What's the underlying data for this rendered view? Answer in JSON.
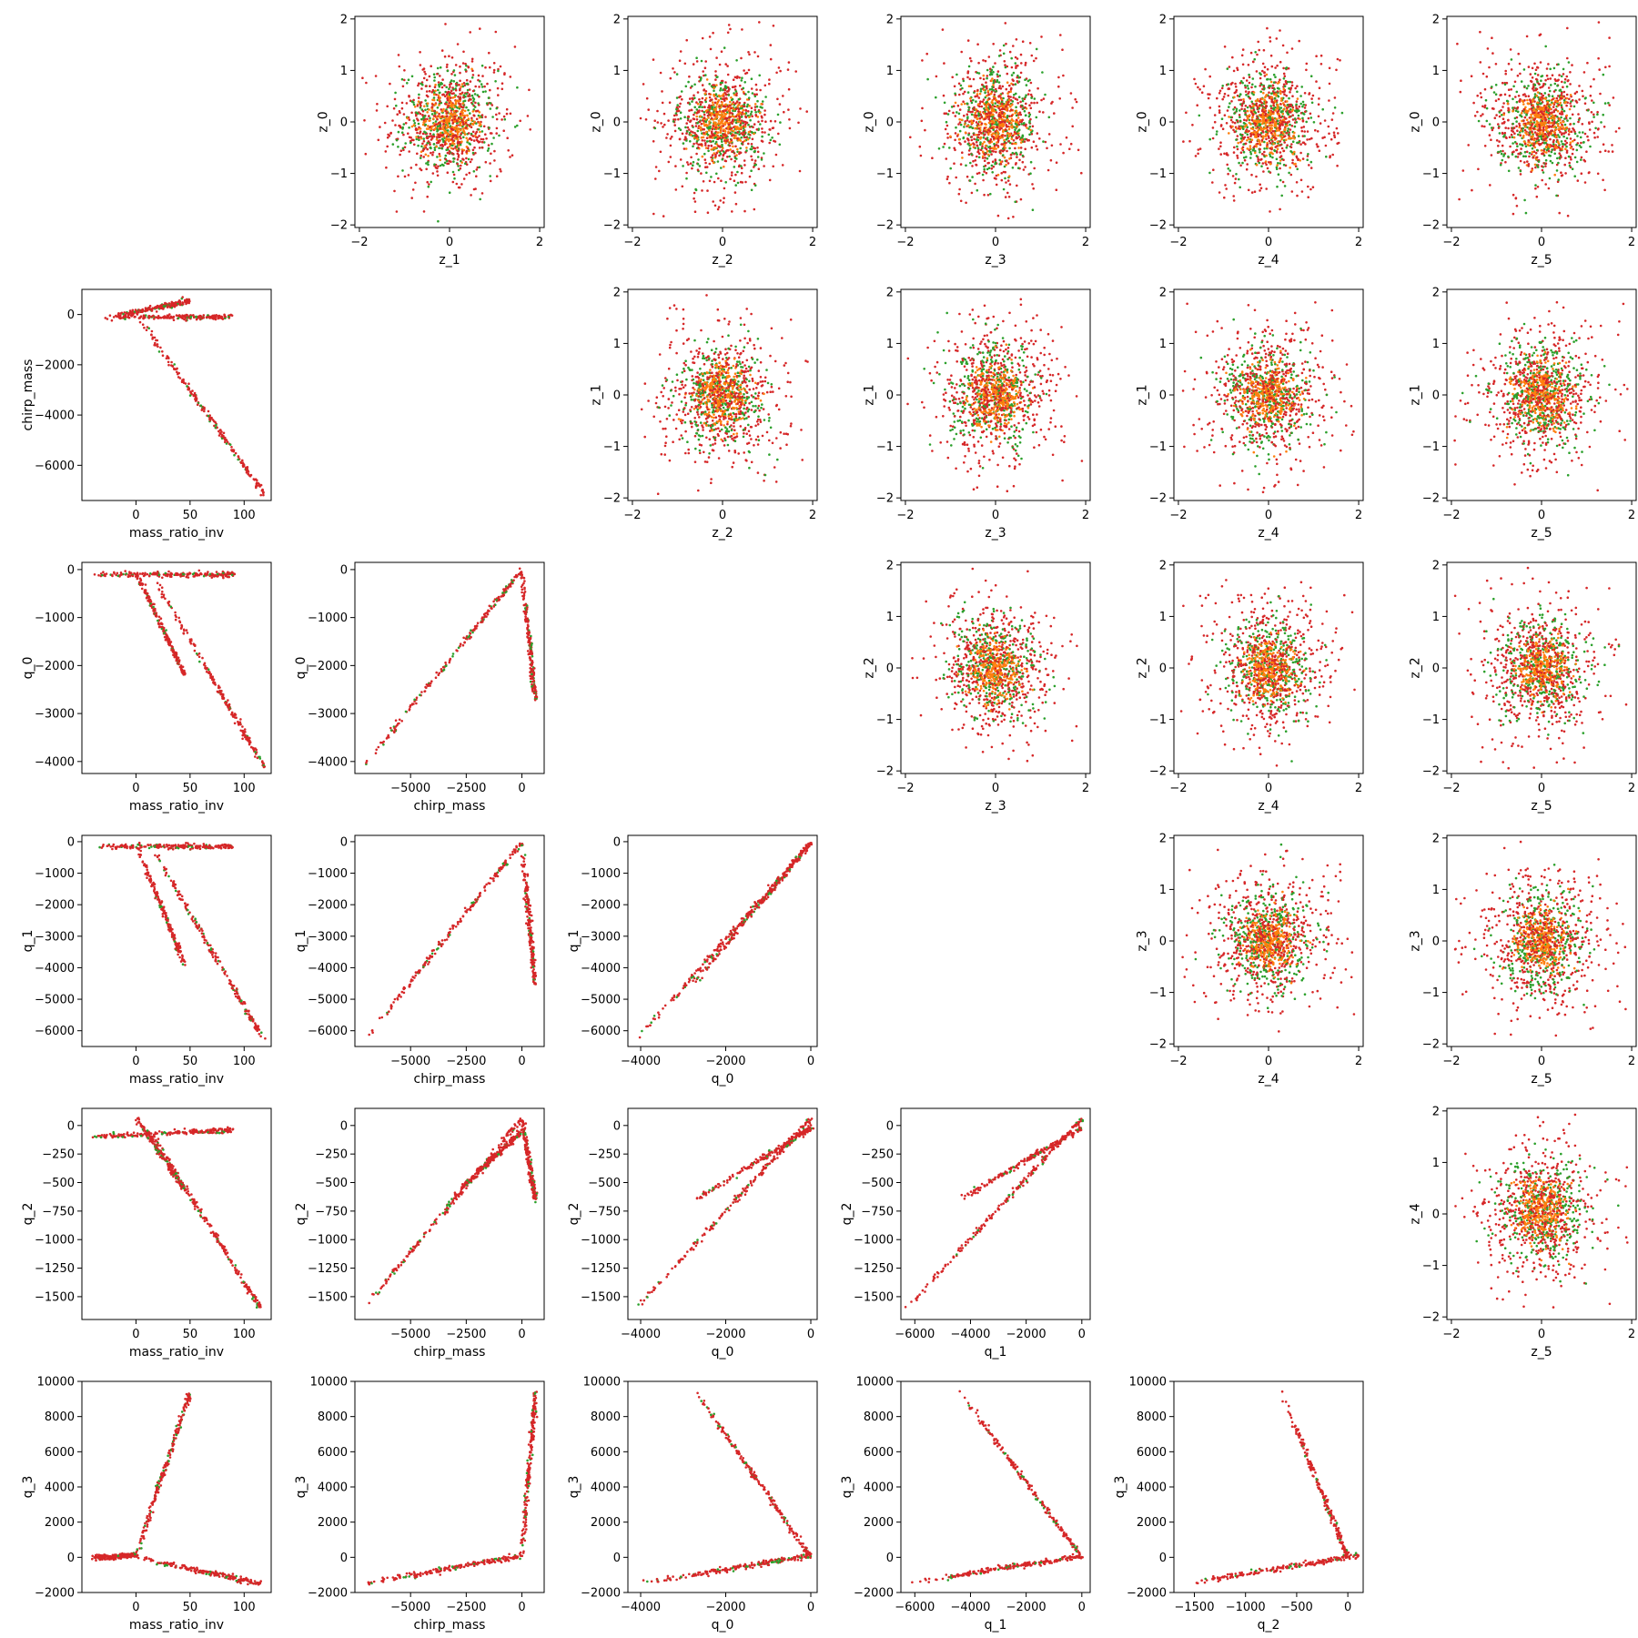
{
  "colors": {
    "red": "#d62728",
    "green": "#2ca02c",
    "orange": "#ff7f0e",
    "frame": "#000000"
  },
  "chart_data": [
    {
      "type": "scatter",
      "row": 0,
      "col": 1,
      "xlabel": "z_1",
      "ylabel": "z_0",
      "kind": "gauss",
      "xlim": [
        -2.1,
        2.1
      ],
      "ylim": [
        -2.05,
        2.05
      ],
      "xticks": [
        -2,
        0,
        2
      ],
      "yticks": [
        -2,
        -1,
        0,
        1,
        2
      ]
    },
    {
      "type": "scatter",
      "row": 0,
      "col": 2,
      "xlabel": "z_2",
      "ylabel": "z_0",
      "kind": "gauss",
      "xlim": [
        -2.1,
        2.1
      ],
      "ylim": [
        -2.05,
        2.05
      ],
      "xticks": [
        -2,
        0,
        2
      ],
      "yticks": [
        -2,
        -1,
        0,
        1,
        2
      ]
    },
    {
      "type": "scatter",
      "row": 0,
      "col": 3,
      "xlabel": "z_3",
      "ylabel": "z_0",
      "kind": "gauss",
      "xlim": [
        -2.1,
        2.1
      ],
      "ylim": [
        -2.05,
        2.05
      ],
      "xticks": [
        -2,
        0,
        2
      ],
      "yticks": [
        -2,
        -1,
        0,
        1,
        2
      ]
    },
    {
      "type": "scatter",
      "row": 0,
      "col": 4,
      "xlabel": "z_4",
      "ylabel": "z_0",
      "kind": "gauss",
      "xlim": [
        -2.1,
        2.1
      ],
      "ylim": [
        -2.05,
        2.05
      ],
      "xticks": [
        -2,
        0,
        2
      ],
      "yticks": [
        -2,
        -1,
        0,
        1,
        2
      ]
    },
    {
      "type": "scatter",
      "row": 0,
      "col": 5,
      "xlabel": "z_5",
      "ylabel": "z_0",
      "kind": "gauss",
      "xlim": [
        -2.1,
        2.1
      ],
      "ylim": [
        -2.05,
        2.05
      ],
      "xticks": [
        -2,
        0,
        2
      ],
      "yticks": [
        -2,
        -1,
        0,
        1,
        2
      ]
    },
    {
      "type": "scatter",
      "row": 1,
      "col": 0,
      "xlabel": "mass_ratio_inv",
      "ylabel": "chirp_mass",
      "kind": "lines",
      "xlim": [
        -50,
        125
      ],
      "ylim": [
        -7400,
        1000
      ],
      "xticks": [
        0,
        50,
        100
      ],
      "yticks": [
        -6000,
        -4000,
        -2000,
        0
      ],
      "segments": [
        [
          [
            -30,
            -150
          ],
          [
            50,
            550
          ]
        ],
        [
          [
            -15,
            -100
          ],
          [
            90,
            -100
          ]
        ],
        [
          [
            5,
            -300
          ],
          [
            118,
            -7100
          ]
        ]
      ]
    },
    {
      "type": "scatter",
      "row": 1,
      "col": 2,
      "xlabel": "z_2",
      "ylabel": "z_1",
      "kind": "gauss",
      "xlim": [
        -2.1,
        2.1
      ],
      "ylim": [
        -2.05,
        2.05
      ],
      "xticks": [
        -2,
        0,
        2
      ],
      "yticks": [
        -2,
        -1,
        0,
        1,
        2
      ]
    },
    {
      "type": "scatter",
      "row": 1,
      "col": 3,
      "xlabel": "z_3",
      "ylabel": "z_1",
      "kind": "gauss",
      "xlim": [
        -2.1,
        2.1
      ],
      "ylim": [
        -2.05,
        2.05
      ],
      "xticks": [
        -2,
        0,
        2
      ],
      "yticks": [
        -2,
        -1,
        0,
        1,
        2
      ]
    },
    {
      "type": "scatter",
      "row": 1,
      "col": 4,
      "xlabel": "z_4",
      "ylabel": "z_1",
      "kind": "gauss",
      "xlim": [
        -2.1,
        2.1
      ],
      "ylim": [
        -2.05,
        2.05
      ],
      "xticks": [
        -2,
        0,
        2
      ],
      "yticks": [
        -2,
        -1,
        0,
        1,
        2
      ]
    },
    {
      "type": "scatter",
      "row": 1,
      "col": 5,
      "xlabel": "z_5",
      "ylabel": "z_1",
      "kind": "gauss",
      "xlim": [
        -2.1,
        2.1
      ],
      "ylim": [
        -2.05,
        2.05
      ],
      "xticks": [
        -2,
        0,
        2
      ],
      "yticks": [
        -2,
        -1,
        0,
        1,
        2
      ]
    },
    {
      "type": "scatter",
      "row": 2,
      "col": 0,
      "xlabel": "mass_ratio_inv",
      "ylabel": "q_0",
      "kind": "lines",
      "xlim": [
        -50,
        125
      ],
      "ylim": [
        -4250,
        150
      ],
      "xticks": [
        0,
        50,
        100
      ],
      "yticks": [
        -4000,
        -3000,
        -2000,
        -1000,
        0
      ],
      "segments": [
        [
          [
            -40,
            -100
          ],
          [
            90,
            -100
          ]
        ],
        [
          [
            0,
            -50
          ],
          [
            45,
            -2200
          ]
        ],
        [
          [
            15,
            -100
          ],
          [
            118,
            -4100
          ]
        ]
      ]
    },
    {
      "type": "scatter",
      "row": 2,
      "col": 1,
      "xlabel": "chirp_mass",
      "ylabel": "q_0",
      "kind": "lines",
      "xlim": [
        -7500,
        1000
      ],
      "ylim": [
        -4250,
        150
      ],
      "xticks": [
        -5000,
        -2500,
        0
      ],
      "yticks": [
        -4000,
        -3000,
        -2000,
        -1000,
        0
      ],
      "segments": [
        [
          [
            -7100,
            -4100
          ],
          [
            0,
            -10
          ]
        ],
        [
          [
            0,
            -10
          ],
          [
            600,
            -2700
          ]
        ]
      ]
    },
    {
      "type": "scatter",
      "row": 2,
      "col": 3,
      "xlabel": "z_3",
      "ylabel": "z_2",
      "kind": "gauss",
      "xlim": [
        -2.1,
        2.1
      ],
      "ylim": [
        -2.05,
        2.05
      ],
      "xticks": [
        -2,
        0,
        2
      ],
      "yticks": [
        -2,
        -1,
        0,
        1,
        2
      ]
    },
    {
      "type": "scatter",
      "row": 2,
      "col": 4,
      "xlabel": "z_4",
      "ylabel": "z_2",
      "kind": "gauss",
      "xlim": [
        -2.1,
        2.1
      ],
      "ylim": [
        -2.05,
        2.05
      ],
      "xticks": [
        -2,
        0,
        2
      ],
      "yticks": [
        -2,
        -1,
        0,
        1,
        2
      ]
    },
    {
      "type": "scatter",
      "row": 2,
      "col": 5,
      "xlabel": "z_5",
      "ylabel": "z_2",
      "kind": "gauss",
      "xlim": [
        -2.1,
        2.1
      ],
      "ylim": [
        -2.05,
        2.05
      ],
      "xticks": [
        -2,
        0,
        2
      ],
      "yticks": [
        -2,
        -1,
        0,
        1,
        2
      ]
    },
    {
      "type": "scatter",
      "row": 3,
      "col": 0,
      "xlabel": "mass_ratio_inv",
      "ylabel": "q_1",
      "kind": "lines",
      "xlim": [
        -50,
        125
      ],
      "ylim": [
        -6500,
        200
      ],
      "xticks": [
        0,
        50,
        100
      ],
      "yticks": [
        -6000,
        -5000,
        -4000,
        -3000,
        -2000,
        -1000,
        0
      ],
      "segments": [
        [
          [
            -40,
            -150
          ],
          [
            90,
            -150
          ]
        ],
        [
          [
            0,
            -50
          ],
          [
            45,
            -3900
          ]
        ],
        [
          [
            15,
            -200
          ],
          [
            118,
            -6300
          ]
        ]
      ]
    },
    {
      "type": "scatter",
      "row": 3,
      "col": 1,
      "xlabel": "chirp_mass",
      "ylabel": "q_1",
      "kind": "lines",
      "xlim": [
        -7500,
        1000
      ],
      "ylim": [
        -6500,
        200
      ],
      "xticks": [
        -5000,
        -2500,
        0
      ],
      "yticks": [
        -6000,
        -5000,
        -4000,
        -3000,
        -2000,
        -1000,
        0
      ],
      "segments": [
        [
          [
            -7100,
            -6300
          ],
          [
            0,
            -30
          ]
        ],
        [
          [
            0,
            -30
          ],
          [
            600,
            -4500
          ]
        ]
      ]
    },
    {
      "type": "scatter",
      "row": 3,
      "col": 2,
      "xlabel": "q_0",
      "ylabel": "q_1",
      "kind": "lines",
      "xlim": [
        -4300,
        150
      ],
      "ylim": [
        -6500,
        200
      ],
      "xticks": [
        -4000,
        -2000,
        0
      ],
      "yticks": [
        -6000,
        -5000,
        -4000,
        -3000,
        -2000,
        -1000,
        0
      ],
      "segments": [
        [
          [
            -4100,
            -6300
          ],
          [
            0,
            -30
          ]
        ],
        [
          [
            -2700,
            -4400
          ],
          [
            0,
            -30
          ]
        ]
      ]
    },
    {
      "type": "scatter",
      "row": 3,
      "col": 4,
      "xlabel": "z_4",
      "ylabel": "z_3",
      "kind": "gauss",
      "xlim": [
        -2.1,
        2.1
      ],
      "ylim": [
        -2.05,
        2.05
      ],
      "xticks": [
        -2,
        0,
        2
      ],
      "yticks": [
        -2,
        -1,
        0,
        1,
        2
      ]
    },
    {
      "type": "scatter",
      "row": 3,
      "col": 5,
      "xlabel": "z_5",
      "ylabel": "z_3",
      "kind": "gauss",
      "xlim": [
        -2.1,
        2.1
      ],
      "ylim": [
        -2.05,
        2.05
      ],
      "xticks": [
        -2,
        0,
        2
      ],
      "yticks": [
        -2,
        -1,
        0,
        1,
        2
      ]
    },
    {
      "type": "scatter",
      "row": 4,
      "col": 0,
      "xlabel": "mass_ratio_inv",
      "ylabel": "q_2",
      "kind": "lines",
      "xlim": [
        -50,
        125
      ],
      "ylim": [
        -1700,
        150
      ],
      "xticks": [
        0,
        50,
        100
      ],
      "yticks": [
        -1500,
        -1250,
        -1000,
        -750,
        -500,
        -250,
        0
      ],
      "segments": [
        [
          [
            -40,
            -100
          ],
          [
            90,
            -40
          ]
        ],
        [
          [
            0,
            80
          ],
          [
            45,
            -560
          ]
        ],
        [
          [
            15,
            -80
          ],
          [
            115,
            -1600
          ]
        ]
      ]
    },
    {
      "type": "scatter",
      "row": 4,
      "col": 1,
      "xlabel": "chirp_mass",
      "ylabel": "q_2",
      "kind": "lines",
      "xlim": [
        -7500,
        1000
      ],
      "ylim": [
        -1700,
        150
      ],
      "xticks": [
        -5000,
        -2500,
        0
      ],
      "yticks": [
        -1500,
        -1250,
        -1000,
        -750,
        -500,
        -250,
        0
      ],
      "segments": [
        [
          [
            -7100,
            -1600
          ],
          [
            0,
            60
          ]
        ],
        [
          [
            0,
            60
          ],
          [
            600,
            -650
          ]
        ],
        [
          [
            -3000,
            -600
          ],
          [
            0,
            -50
          ]
        ]
      ]
    },
    {
      "type": "scatter",
      "row": 4,
      "col": 2,
      "xlabel": "q_0",
      "ylabel": "q_2",
      "kind": "lines",
      "xlim": [
        -4300,
        150
      ],
      "ylim": [
        -1700,
        150
      ],
      "xticks": [
        -4000,
        -2000,
        0
      ],
      "yticks": [
        -1500,
        -1250,
        -1000,
        -750,
        -500,
        -250,
        0
      ],
      "segments": [
        [
          [
            -4100,
            -1600
          ],
          [
            0,
            60
          ]
        ],
        [
          [
            -2700,
            -650
          ],
          [
            0,
            -20
          ]
        ]
      ]
    },
    {
      "type": "scatter",
      "row": 4,
      "col": 3,
      "xlabel": "q_1",
      "ylabel": "q_2",
      "kind": "lines",
      "xlim": [
        -6500,
        300
      ],
      "ylim": [
        -1700,
        150
      ],
      "xticks": [
        -6000,
        -4000,
        -2000,
        0
      ],
      "yticks": [
        -1500,
        -1250,
        -1000,
        -750,
        -500,
        -250,
        0
      ],
      "segments": [
        [
          [
            -6300,
            -1600
          ],
          [
            0,
            60
          ]
        ],
        [
          [
            -4400,
            -650
          ],
          [
            0,
            -20
          ]
        ]
      ]
    },
    {
      "type": "scatter",
      "row": 4,
      "col": 5,
      "xlabel": "z_5",
      "ylabel": "z_4",
      "kind": "gauss",
      "xlim": [
        -2.1,
        2.1
      ],
      "ylim": [
        -2.05,
        2.05
      ],
      "xticks": [
        -2,
        0,
        2
      ],
      "yticks": [
        -2,
        -1,
        0,
        1,
        2
      ]
    },
    {
      "type": "scatter",
      "row": 5,
      "col": 0,
      "xlabel": "mass_ratio_inv",
      "ylabel": "q_3",
      "kind": "lines",
      "xlim": [
        -50,
        125
      ],
      "ylim": [
        -2000,
        10000
      ],
      "xticks": [
        0,
        50,
        100
      ],
      "yticks": [
        -2000,
        0,
        2000,
        4000,
        6000,
        8000,
        10000
      ],
      "segments": [
        [
          [
            -40,
            0
          ],
          [
            0,
            100
          ]
        ],
        [
          [
            0,
            100
          ],
          [
            50,
            9400
          ]
        ],
        [
          [
            0,
            0
          ],
          [
            115,
            -1500
          ]
        ]
      ]
    },
    {
      "type": "scatter",
      "row": 5,
      "col": 1,
      "xlabel": "chirp_mass",
      "ylabel": "q_3",
      "kind": "lines",
      "xlim": [
        -7500,
        1000
      ],
      "ylim": [
        -2000,
        10000
      ],
      "xticks": [
        -5000,
        -2500,
        0
      ],
      "yticks": [
        -2000,
        0,
        2000,
        4000,
        6000,
        8000,
        10000
      ],
      "segments": [
        [
          [
            -7100,
            -1500
          ],
          [
            0,
            100
          ]
        ],
        [
          [
            0,
            0
          ],
          [
            600,
            9400
          ]
        ]
      ]
    },
    {
      "type": "scatter",
      "row": 5,
      "col": 2,
      "xlabel": "q_0",
      "ylabel": "q_3",
      "kind": "lines",
      "xlim": [
        -4300,
        150
      ],
      "ylim": [
        -2000,
        10000
      ],
      "xticks": [
        -4000,
        -2000,
        0
      ],
      "yticks": [
        -2000,
        0,
        2000,
        4000,
        6000,
        8000,
        10000
      ],
      "segments": [
        [
          [
            -4100,
            -1500
          ],
          [
            0,
            100
          ]
        ],
        [
          [
            -2700,
            9400
          ],
          [
            0,
            0
          ]
        ]
      ]
    },
    {
      "type": "scatter",
      "row": 5,
      "col": 3,
      "xlabel": "q_1",
      "ylabel": "q_3",
      "kind": "lines",
      "xlim": [
        -6500,
        300
      ],
      "ylim": [
        -2000,
        10000
      ],
      "xticks": [
        -6000,
        -4000,
        -2000,
        0
      ],
      "yticks": [
        -2000,
        0,
        2000,
        4000,
        6000,
        8000,
        10000
      ],
      "segments": [
        [
          [
            -6300,
            -1500
          ],
          [
            0,
            100
          ]
        ],
        [
          [
            -4400,
            9400
          ],
          [
            0,
            0
          ]
        ]
      ]
    },
    {
      "type": "scatter",
      "row": 5,
      "col": 4,
      "xlabel": "q_2",
      "ylabel": "q_3",
      "kind": "lines",
      "xlim": [
        -1700,
        150
      ],
      "ylim": [
        -2000,
        10000
      ],
      "xticks": [
        -1500,
        -1000,
        -500,
        0
      ],
      "yticks": [
        -2000,
        0,
        2000,
        4000,
        6000,
        8000,
        10000
      ],
      "segments": [
        [
          [
            -1600,
            -1500
          ],
          [
            100,
            100
          ]
        ],
        [
          [
            -650,
            9400
          ],
          [
            0,
            0
          ]
        ]
      ]
    }
  ]
}
